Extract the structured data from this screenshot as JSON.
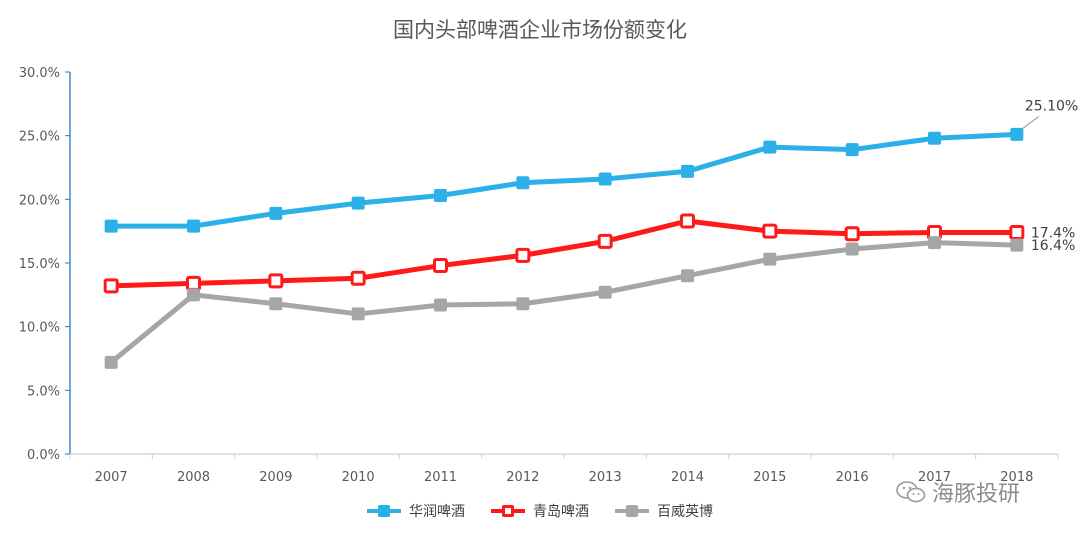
{
  "chart_data": {
    "type": "line",
    "title": "国内头部啤酒企业市场份额变化",
    "categories": [
      "2007",
      "2008",
      "2009",
      "2010",
      "2011",
      "2012",
      "2013",
      "2014",
      "2015",
      "2016",
      "2017",
      "2018"
    ],
    "ylim": [
      0,
      30
    ],
    "yticks": [
      "0.0%",
      "5.0%",
      "10.0%",
      "15.0%",
      "20.0%",
      "25.0%",
      "30.0%"
    ],
    "ytick_values": [
      0,
      5,
      10,
      15,
      20,
      25,
      30
    ],
    "legend_position": "bottom",
    "grid": false,
    "series": [
      {
        "name": "华润啤酒",
        "color": "#2bb0e8",
        "values": [
          17.9,
          17.9,
          18.9,
          19.7,
          20.3,
          21.3,
          21.6,
          22.2,
          24.1,
          23.9,
          24.8,
          25.1
        ]
      },
      {
        "name": "青岛啤酒",
        "color": "#ff1a1a",
        "values": [
          13.2,
          13.4,
          13.6,
          13.8,
          14.8,
          15.6,
          16.7,
          18.3,
          17.5,
          17.3,
          17.4,
          17.4
        ]
      },
      {
        "name": "百威英博",
        "color": "#a6a6a6",
        "values": [
          7.2,
          12.5,
          11.8,
          11.0,
          11.7,
          11.8,
          12.7,
          14.0,
          15.3,
          16.1,
          16.6,
          16.4
        ]
      }
    ],
    "annotations": [
      {
        "series": 0,
        "index": 11,
        "text": "25.10%"
      },
      {
        "series": 1,
        "index": 11,
        "text": "17.4%"
      },
      {
        "series": 2,
        "index": 11,
        "text": "16.4%"
      }
    ]
  },
  "watermark": {
    "text": "海豚投研",
    "icon": "wechat-icon"
  }
}
